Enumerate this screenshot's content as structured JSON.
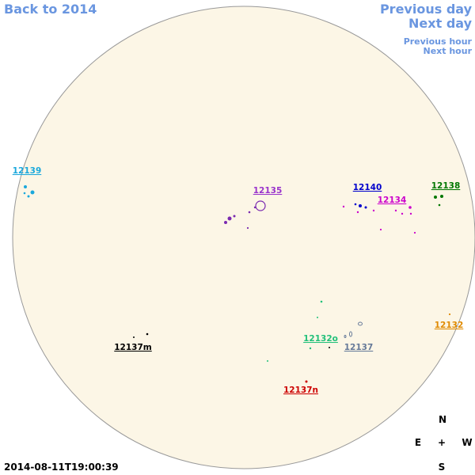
{
  "navigation": {
    "back": "Back to 2014",
    "previous_day": "Previous day",
    "next_day": "Next day",
    "previous_hour": "Previous hour",
    "next_hour": "Next hour"
  },
  "regions": [
    {
      "label": "12139",
      "color": "#1aa8dc"
    },
    {
      "label": "12135",
      "color": "#9933cc"
    },
    {
      "label": "12140",
      "color": "#0000cc"
    },
    {
      "label": "12134",
      "color": "#cc00cc"
    },
    {
      "label": "12138",
      "color": "#007700"
    },
    {
      "label": "12132",
      "color": "#e08a00"
    },
    {
      "label": "12132o",
      "color": "#22c07a"
    },
    {
      "label": "12137",
      "color": "#667a99"
    },
    {
      "label": "12137m",
      "color": "#000000"
    },
    {
      "label": "12137n",
      "color": "#cc0000"
    }
  ],
  "timestamp": "2014-08-11T19:00:39",
  "compass": {
    "north": "N",
    "east": "E",
    "center": "+",
    "west": "W",
    "south": "S"
  }
}
